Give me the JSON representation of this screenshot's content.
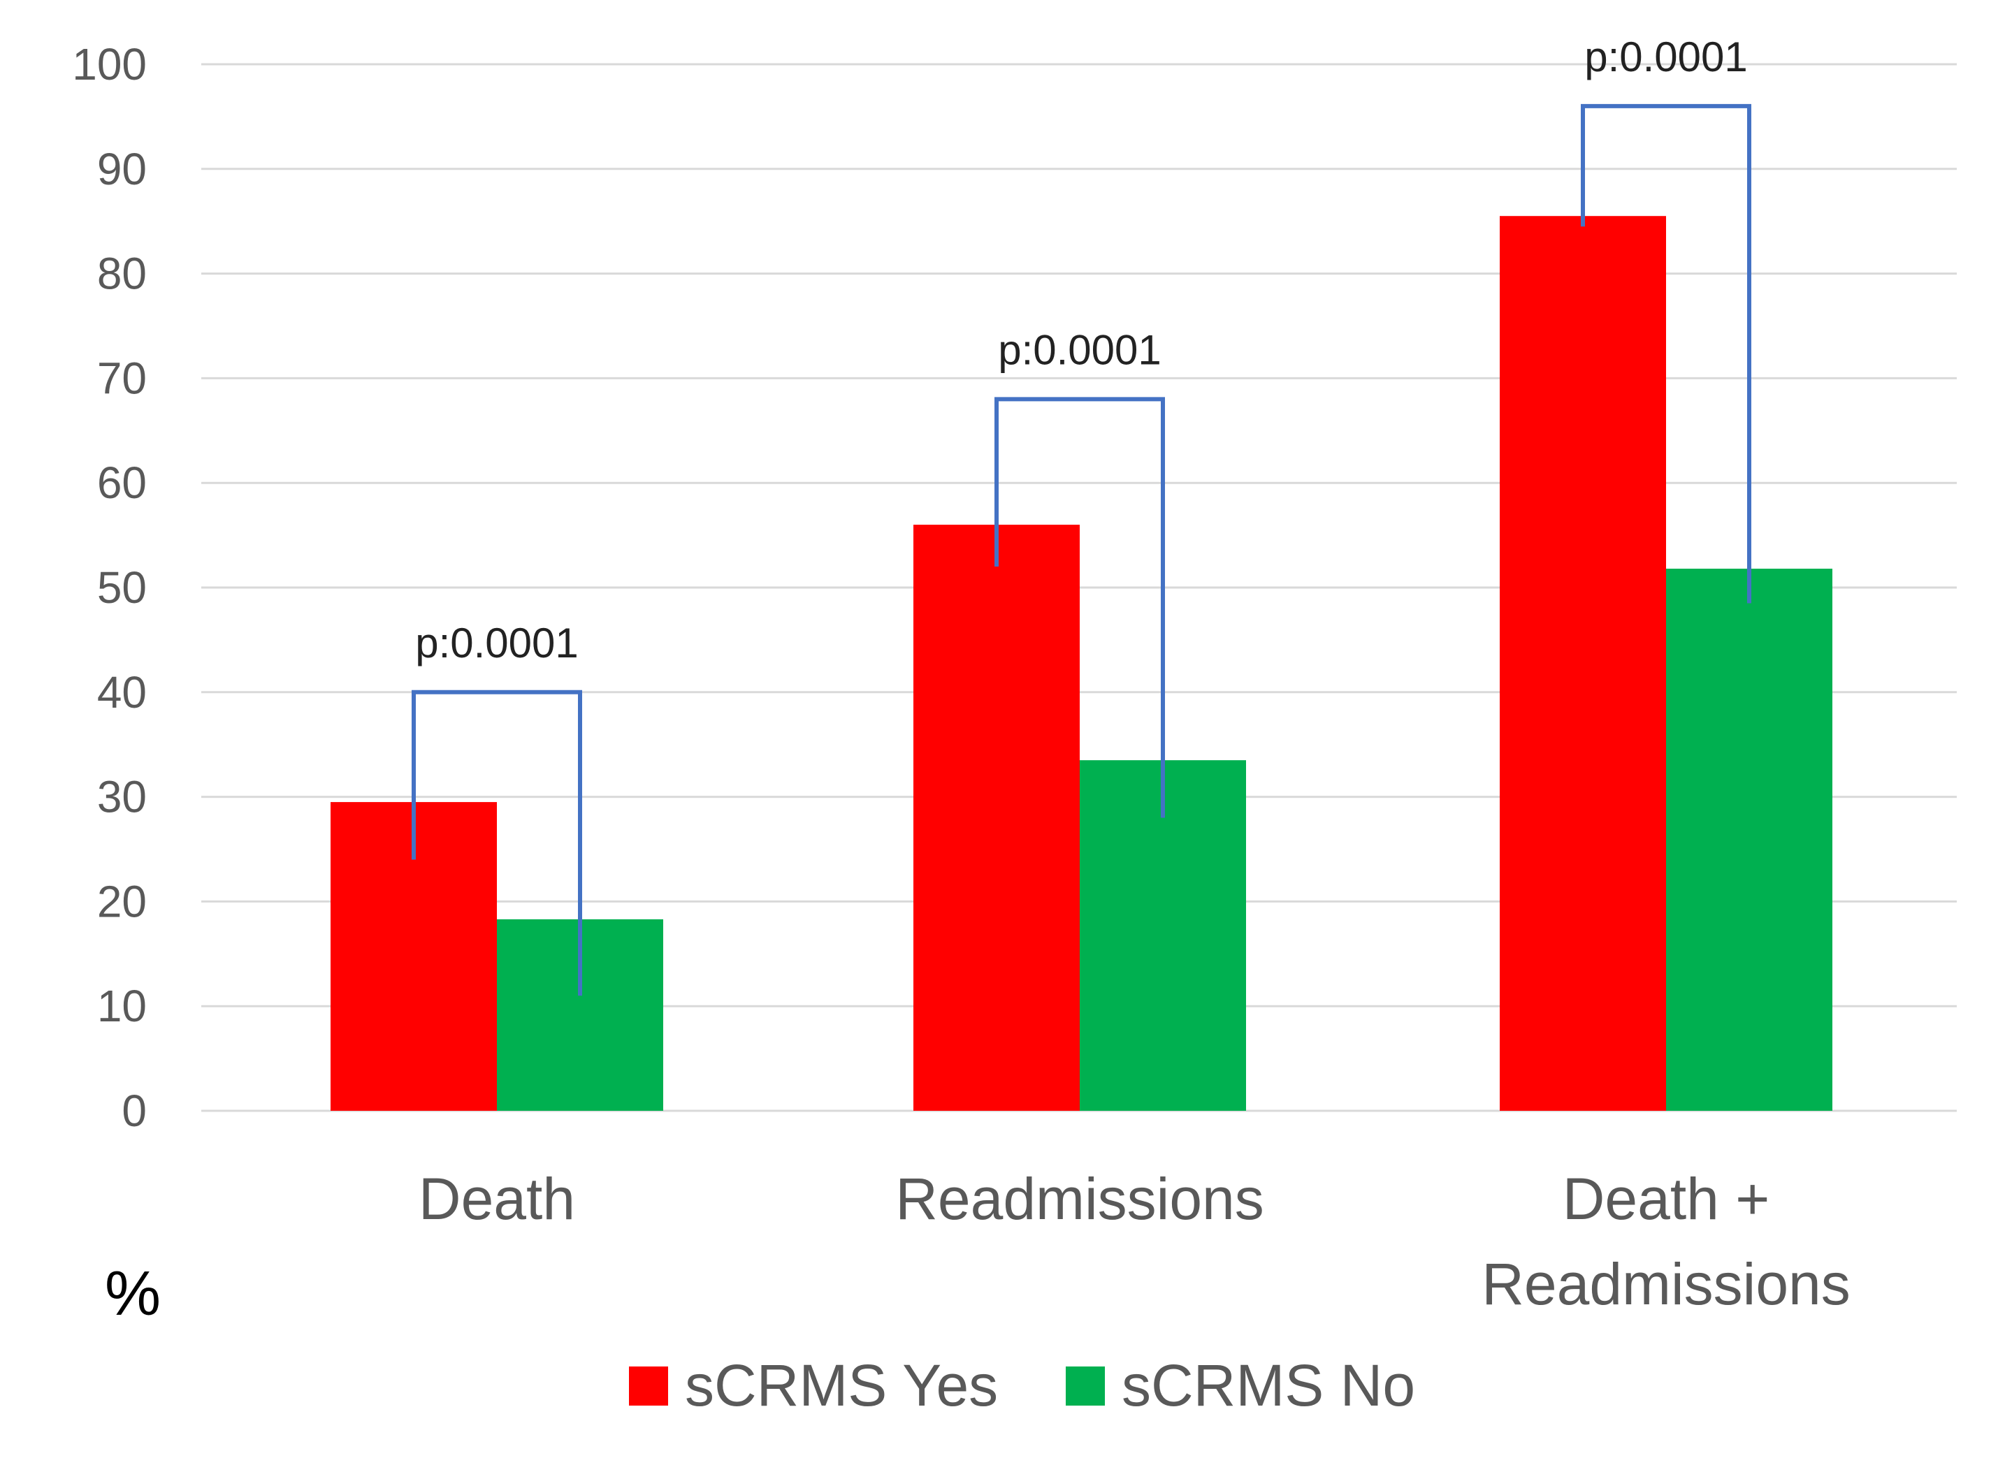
{
  "chart_data": {
    "type": "bar",
    "title": "",
    "xlabel": "",
    "ylabel": "%",
    "ylim": [
      0,
      100
    ],
    "yticks": [
      0,
      10,
      20,
      30,
      40,
      50,
      60,
      70,
      80,
      90,
      100
    ],
    "grid": true,
    "categories": [
      [
        "Death"
      ],
      [
        "Readmissions"
      ],
      [
        "Death +",
        "Readmissions"
      ]
    ],
    "series": [
      {
        "name": "sCRMS Yes",
        "color": "#ff0000",
        "values": [
          29.5,
          56,
          85.5
        ]
      },
      {
        "name": "sCRMS No",
        "color": "#00b050",
        "values": [
          18.3,
          33.5,
          51.8
        ]
      }
    ],
    "annotations": [
      {
        "category_index": 0,
        "text": "p:0.0001",
        "bracket_top": 40,
        "yes_end": 24,
        "no_end": 11
      },
      {
        "category_index": 1,
        "text": "p:0.0001",
        "bracket_top": 68,
        "yes_end": 52,
        "no_end": 28
      },
      {
        "category_index": 2,
        "text": "p:0.0001",
        "bracket_top": 96,
        "yes_end": 84.5,
        "no_end": 48.5
      }
    ],
    "bracket_color": "#4472c4",
    "legend_position": "bottom"
  }
}
